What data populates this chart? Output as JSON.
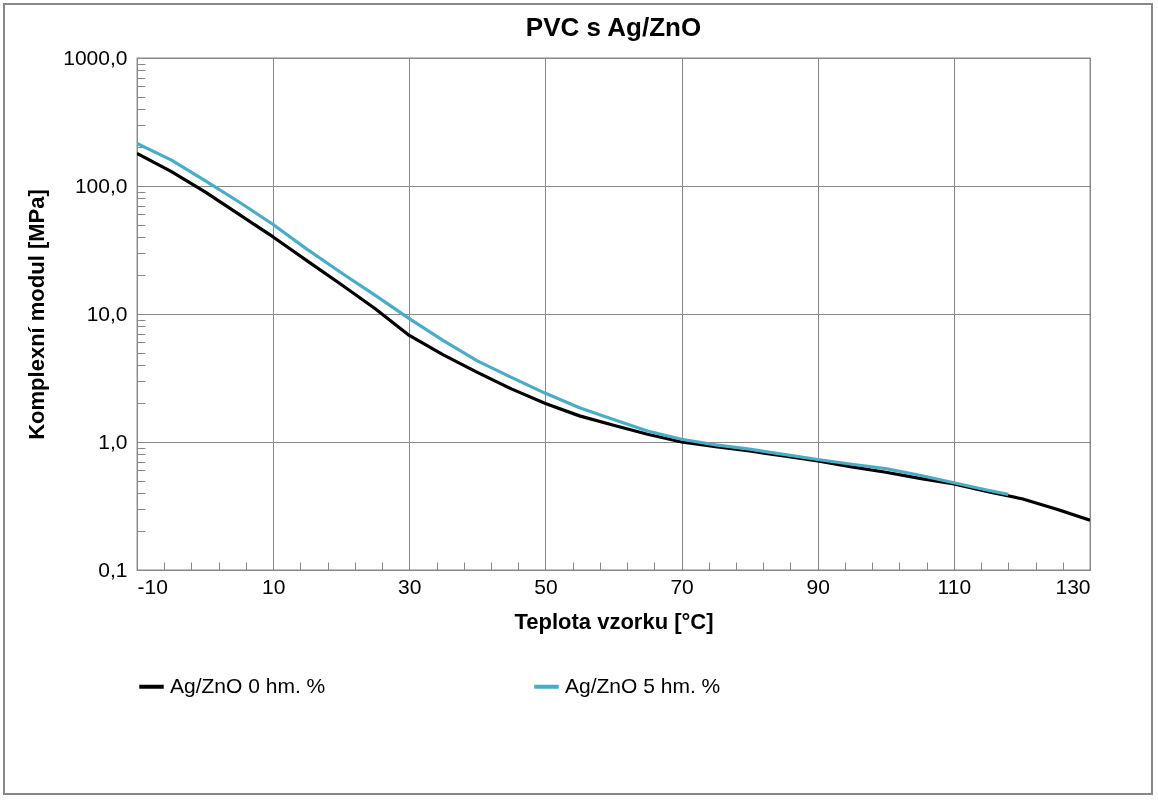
{
  "chart_data": {
    "type": "line",
    "title": "PVC s Ag/ZnO",
    "xlabel": "Teplota vzorku [°C]",
    "ylabel": "Komplexní modul [MPa]",
    "x": [
      -10,
      -5,
      0,
      5,
      10,
      15,
      20,
      25,
      30,
      35,
      40,
      45,
      50,
      55,
      60,
      65,
      70,
      75,
      80,
      85,
      90,
      95,
      100,
      105,
      110,
      115,
      120,
      125,
      130
    ],
    "series": [
      {
        "name": "Ag/ZnO 0 hm. %",
        "color": "#000000",
        "values": [
          180,
          130,
          90,
          60,
          40,
          26,
          17,
          11,
          6.8,
          4.8,
          3.5,
          2.6,
          2.0,
          1.6,
          1.35,
          1.15,
          1.0,
          0.92,
          0.85,
          0.78,
          0.71,
          0.64,
          0.58,
          0.52,
          0.47,
          0.41,
          0.36,
          0.3,
          0.245
        ]
      },
      {
        "name": "Ag/ZnO 5 hm. %",
        "color": "#4bacc6",
        "x": [
          -10,
          -5,
          0,
          5,
          10,
          15,
          20,
          25,
          30,
          35,
          40,
          45,
          50,
          55,
          60,
          65,
          70,
          75,
          80,
          85,
          90,
          95,
          100,
          105,
          110,
          115,
          118
        ],
        "values": [
          215,
          160,
          110,
          75,
          50,
          32,
          21,
          14,
          9.2,
          6.2,
          4.3,
          3.2,
          2.4,
          1.85,
          1.5,
          1.22,
          1.05,
          0.95,
          0.88,
          0.8,
          0.73,
          0.67,
          0.62,
          0.55,
          0.48,
          0.42,
          0.39
        ]
      }
    ],
    "xlim": [
      -10,
      130
    ],
    "xticks": [
      -10,
      {
        "value": -6,
        "label": null
      },
      {
        "value": -2,
        "label": null
      },
      {
        "value": 2,
        "label": null
      },
      {
        "value": 6,
        "label": null
      },
      10,
      {
        "value": 14,
        "label": null
      },
      {
        "value": 18,
        "label": null
      },
      {
        "value": 22,
        "label": null
      },
      {
        "value": 26,
        "label": null
      },
      30,
      {
        "value": 34,
        "label": null
      },
      {
        "value": 38,
        "label": null
      },
      {
        "value": 42,
        "label": null
      },
      {
        "value": 46,
        "label": null
      },
      50,
      {
        "value": 54,
        "label": null
      },
      {
        "value": 58,
        "label": null
      },
      {
        "value": 62,
        "label": null
      },
      {
        "value": 66,
        "label": null
      },
      70,
      {
        "value": 74,
        "label": null
      },
      {
        "value": 78,
        "label": null
      },
      {
        "value": 82,
        "label": null
      },
      {
        "value": 86,
        "label": null
      },
      90,
      {
        "value": 94,
        "label": null
      },
      {
        "value": 98,
        "label": null
      },
      {
        "value": 102,
        "label": null
      },
      {
        "value": 106,
        "label": null
      },
      110,
      {
        "value": 114,
        "label": null
      },
      {
        "value": 118,
        "label": null
      },
      {
        "value": 122,
        "label": null
      },
      {
        "value": 126,
        "label": null
      },
      130
    ],
    "ylim": [
      0.1,
      1000
    ],
    "yticks": [
      {
        "value": 0.1,
        "label": "0,1"
      },
      {
        "value": 0.2,
        "label": null
      },
      {
        "value": 0.3,
        "label": null
      },
      {
        "value": 0.4,
        "label": null
      },
      {
        "value": 0.5,
        "label": null
      },
      {
        "value": 0.6,
        "label": null
      },
      {
        "value": 0.7,
        "label": null
      },
      {
        "value": 0.8,
        "label": null
      },
      {
        "value": 0.9,
        "label": null
      },
      {
        "value": 1,
        "label": "1,0"
      },
      {
        "value": 2,
        "label": null
      },
      {
        "value": 3,
        "label": null
      },
      {
        "value": 4,
        "label": null
      },
      {
        "value": 5,
        "label": null
      },
      {
        "value": 6,
        "label": null
      },
      {
        "value": 7,
        "label": null
      },
      {
        "value": 8,
        "label": null
      },
      {
        "value": 9,
        "label": null
      },
      {
        "value": 10,
        "label": "10,0"
      },
      {
        "value": 20,
        "label": null
      },
      {
        "value": 30,
        "label": null
      },
      {
        "value": 40,
        "label": null
      },
      {
        "value": 50,
        "label": null
      },
      {
        "value": 60,
        "label": null
      },
      {
        "value": 70,
        "label": null
      },
      {
        "value": 80,
        "label": null
      },
      {
        "value": 90,
        "label": null
      },
      {
        "value": 100,
        "label": "100,0"
      },
      {
        "value": 200,
        "label": null
      },
      {
        "value": 300,
        "label": null
      },
      {
        "value": 400,
        "label": null
      },
      {
        "value": 500,
        "label": null
      },
      {
        "value": 600,
        "label": null
      },
      {
        "value": 700,
        "label": null
      },
      {
        "value": 800,
        "label": null
      },
      {
        "value": 900,
        "label": null
      },
      {
        "value": 1000,
        "label": "1000,0"
      }
    ],
    "log": true,
    "grid": true,
    "legend": "bottom",
    "marker": "none",
    "line_style": "solid"
  }
}
